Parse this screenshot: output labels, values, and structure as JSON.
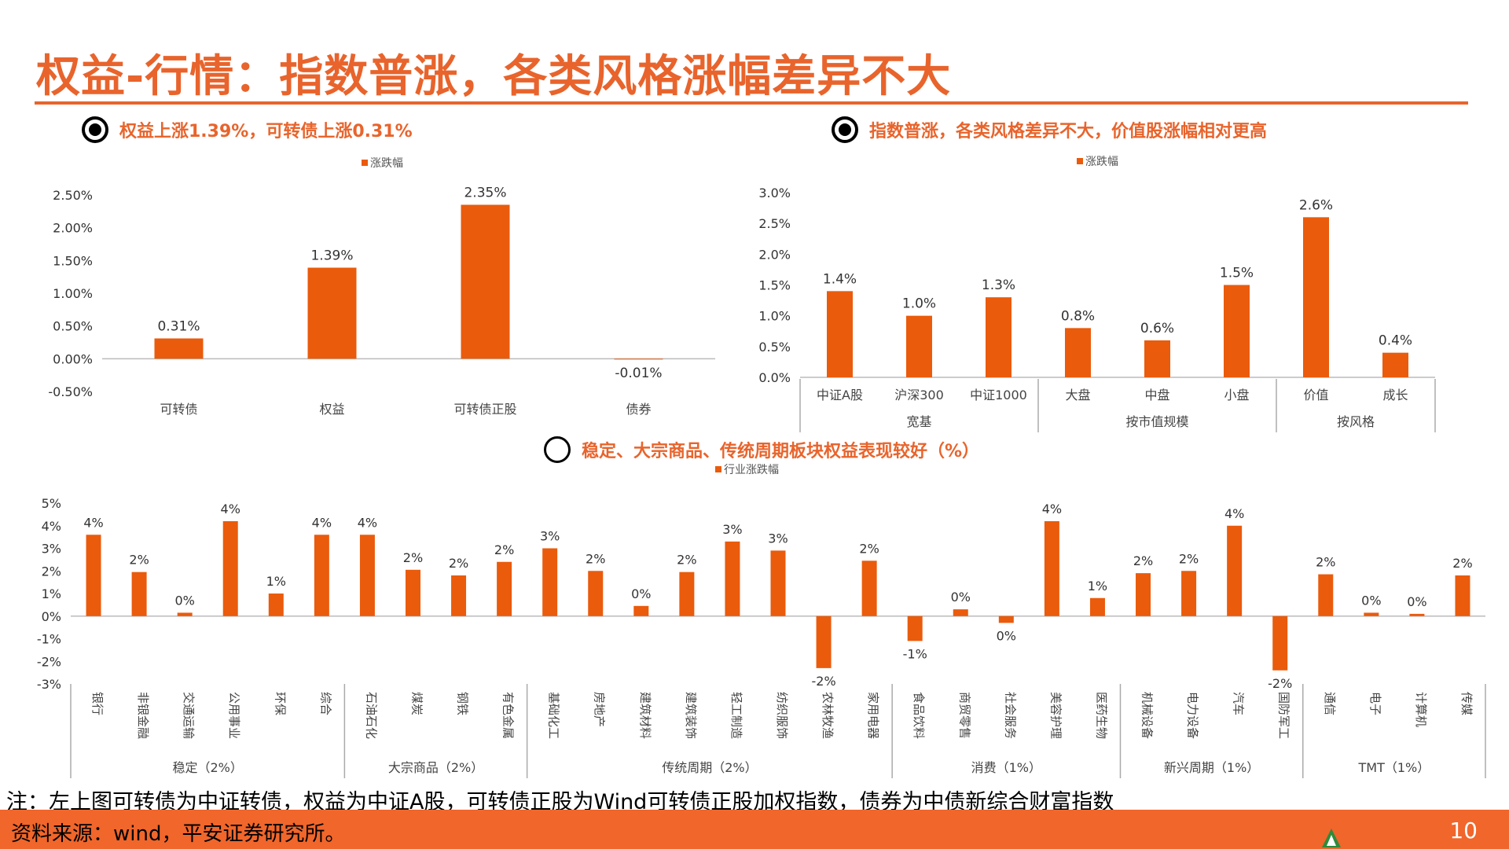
{
  "page": {
    "title": "权益-行情：指数普涨，各类风格涨幅差异不大",
    "note": "注：左上图可转债为中证转债，权益为中证A股，可转债正股为Wind可转债正股加权指数，债券为中债新综合财富指数",
    "source": "资料来源：wind，平安证券研究所。",
    "page_number": "10",
    "accent_color": "#E8642C",
    "bar_color": "#EA5B0C"
  },
  "bullets": [
    {
      "text": "权益上涨1.39%，可转债上涨0.31%",
      "icon": "radio-selected-icon"
    },
    {
      "text": "指数普涨，各类风格差异不大，价值股涨幅相对更高",
      "icon": "radio-selected-icon"
    },
    {
      "text": "稳定、大宗商品、传统周期板块权益表现较好（%）",
      "icon": "radio-empty-icon"
    }
  ],
  "chart_data": [
    {
      "type": "bar",
      "legend": "涨跌幅",
      "categories": [
        "可转债",
        "权益",
        "可转债正股",
        "债券"
      ],
      "values": [
        0.31,
        1.39,
        2.35,
        -0.01
      ],
      "data_labels": [
        "0.31%",
        "1.39%",
        "2.35%",
        "-0.01%"
      ],
      "ylim": [
        -0.5,
        2.5
      ],
      "yticks": [
        "2.50%",
        "2.00%",
        "1.50%",
        "1.00%",
        "0.50%",
        "0.00%",
        "-0.50%"
      ],
      "legend_position": "top-center"
    },
    {
      "type": "bar",
      "legend": "涨跌幅",
      "categories": [
        "中证A股",
        "沪深300",
        "中证1000",
        "大盘",
        "中盘",
        "小盘",
        "价值",
        "成长"
      ],
      "values": [
        1.4,
        1.0,
        1.3,
        0.8,
        0.6,
        1.5,
        2.6,
        0.4
      ],
      "data_labels": [
        "1.4%",
        "1.0%",
        "1.3%",
        "0.8%",
        "0.6%",
        "1.5%",
        "2.6%",
        "0.4%"
      ],
      "groups": [
        {
          "name": "宽基",
          "count": 3
        },
        {
          "name": "按市值规模",
          "count": 3
        },
        {
          "name": "按风格",
          "count": 2
        }
      ],
      "ylim": [
        0,
        3.0
      ],
      "yticks": [
        "3.0%",
        "2.5%",
        "2.0%",
        "1.5%",
        "1.0%",
        "0.5%",
        "0.0%"
      ],
      "legend_position": "top-center"
    },
    {
      "type": "bar",
      "legend": "行业涨跌幅",
      "categories": [
        "银行",
        "非银金融",
        "交通运输",
        "公用事业",
        "环保",
        "综合",
        "石油石化",
        "煤炭",
        "钢铁",
        "有色金属",
        "基础化工",
        "房地产",
        "建筑材料",
        "建筑装饰",
        "轻工制造",
        "纺织服饰",
        "农林牧渔",
        "家用电器",
        "食品饮料",
        "商贸零售",
        "社会服务",
        "美容护理",
        "医药生物",
        "机械设备",
        "电力设备",
        "汽车",
        "国防军工",
        "通信",
        "电子",
        "计算机",
        "传媒"
      ],
      "values": [
        3.6,
        1.95,
        0.15,
        4.2,
        1.0,
        3.6,
        3.6,
        2.05,
        1.8,
        2.4,
        3.0,
        2.0,
        0.45,
        1.95,
        3.3,
        2.9,
        -2.3,
        2.45,
        -1.1,
        0.3,
        -0.3,
        4.2,
        0.8,
        1.9,
        2.0,
        4.0,
        -2.4,
        1.85,
        0.15,
        0.1,
        1.8
      ],
      "data_labels": [
        "4%",
        "2%",
        "0%",
        "4%",
        "1%",
        "4%",
        "4%",
        "2%",
        "2%",
        "2%",
        "3%",
        "2%",
        "0%",
        "2%",
        "3%",
        "3%",
        "-2%",
        "2%",
        "-1%",
        "0%",
        "0%",
        "4%",
        "1%",
        "2%",
        "2%",
        "4%",
        "-2%",
        "2%",
        "0%",
        "0%",
        "2%"
      ],
      "groups": [
        {
          "name": "稳定（2%）",
          "count": 6
        },
        {
          "name": "大宗商品（2%）",
          "count": 4
        },
        {
          "name": "传统周期（2%）",
          "count": 8
        },
        {
          "name": "消费（1%）",
          "count": 5
        },
        {
          "name": "新兴周期（1%）",
          "count": 4
        },
        {
          "name": "TMT（1%）",
          "count": 4
        }
      ],
      "ylim": [
        -3,
        5
      ],
      "yticks": [
        "5%",
        "4%",
        "3%",
        "2%",
        "1%",
        "0%",
        "-1%",
        "-2%",
        "-3%"
      ],
      "legend_position": "top-center"
    }
  ]
}
